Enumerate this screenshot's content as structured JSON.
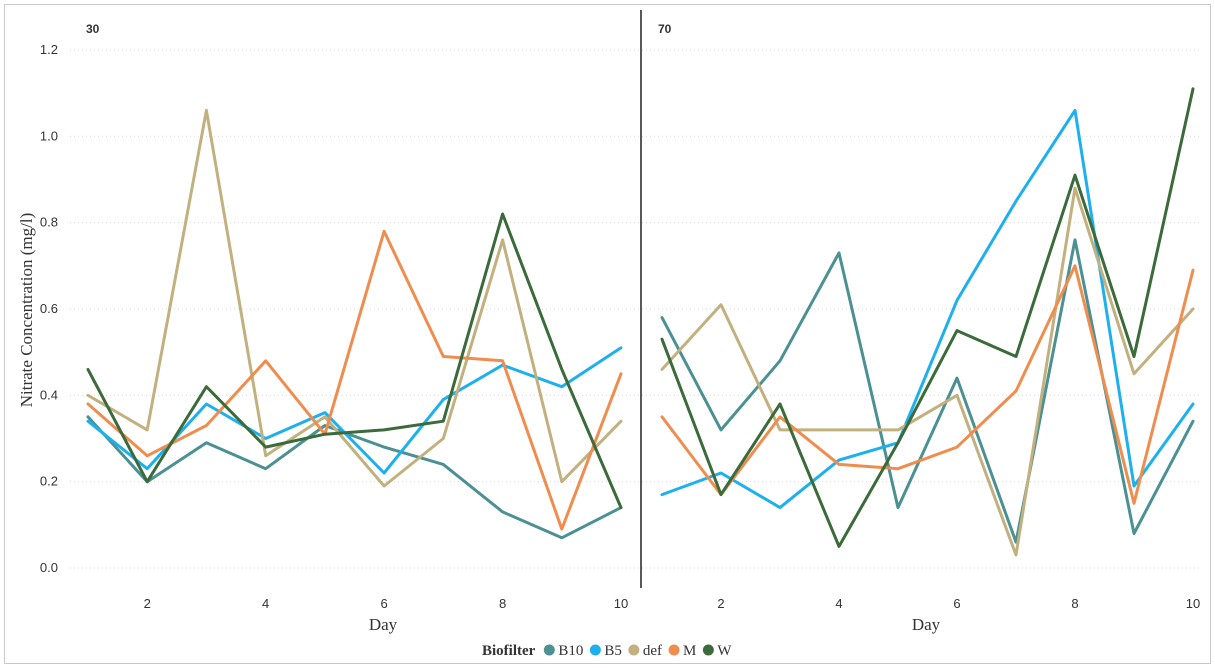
{
  "chart_data": {
    "type": "line",
    "ylabel": "Nitrate Concentration (mg/l)",
    "xlabel": "Day",
    "ylim": [
      0.0,
      1.2
    ],
    "yticks": [
      "0.0",
      "0.2",
      "0.4",
      "0.6",
      "0.8",
      "1.0",
      "1.2"
    ],
    "xlim": [
      1,
      10
    ],
    "xticks": [
      "2",
      "4",
      "6",
      "8",
      "10"
    ],
    "grid": "horizontal dotted",
    "legend": {
      "title": "Biofilter",
      "placement": "bottom-center",
      "entries": [
        "B10",
        "B5",
        "def",
        "M",
        "W"
      ]
    },
    "colors": {
      "B10": "#4b9093",
      "B5": "#1eb0ee",
      "def": "#c2b07e",
      "M": "#ef8d4f",
      "W": "#3b6b3b"
    },
    "panels": [
      {
        "title": "30",
        "x": [
          1,
          2,
          3,
          4,
          5,
          6,
          7,
          8,
          9,
          10
        ],
        "series": [
          {
            "name": "B10",
            "values": [
              0.35,
              0.2,
              0.29,
              0.23,
              0.33,
              0.28,
              0.24,
              0.13,
              0.07,
              0.14
            ]
          },
          {
            "name": "B5",
            "values": [
              0.34,
              0.23,
              0.38,
              0.3,
              0.36,
              0.22,
              0.39,
              0.47,
              0.42,
              0.51
            ]
          },
          {
            "name": "def",
            "values": [
              0.4,
              0.32,
              1.06,
              0.26,
              0.35,
              0.19,
              0.3,
              0.76,
              0.2,
              0.34
            ]
          },
          {
            "name": "M",
            "values": [
              0.38,
              0.26,
              0.33,
              0.48,
              0.31,
              0.78,
              0.49,
              0.48,
              0.09,
              0.45
            ]
          },
          {
            "name": "W",
            "values": [
              0.46,
              0.2,
              0.42,
              0.28,
              0.31,
              0.32,
              0.34,
              0.82,
              0.46,
              0.14
            ]
          }
        ]
      },
      {
        "title": "70",
        "x": [
          1,
          2,
          3,
          4,
          5,
          6,
          7,
          8,
          9,
          10
        ],
        "series": [
          {
            "name": "B10",
            "values": [
              0.58,
              0.32,
              0.48,
              0.73,
              0.14,
              0.44,
              0.06,
              0.76,
              0.08,
              0.34
            ]
          },
          {
            "name": "B5",
            "values": [
              0.17,
              0.22,
              0.14,
              0.25,
              0.29,
              0.62,
              0.85,
              1.06,
              0.19,
              0.38
            ]
          },
          {
            "name": "def",
            "values": [
              0.46,
              0.61,
              0.32,
              0.32,
              0.32,
              0.4,
              0.03,
              0.88,
              0.45,
              0.6
            ]
          },
          {
            "name": "M",
            "values": [
              0.35,
              0.17,
              0.35,
              0.24,
              0.23,
              0.28,
              0.41,
              0.7,
              0.15,
              0.69
            ]
          },
          {
            "name": "W",
            "values": [
              0.53,
              0.17,
              0.38,
              0.05,
              0.29,
              0.55,
              0.49,
              0.91,
              0.49,
              1.11
            ]
          }
        ]
      }
    ]
  }
}
